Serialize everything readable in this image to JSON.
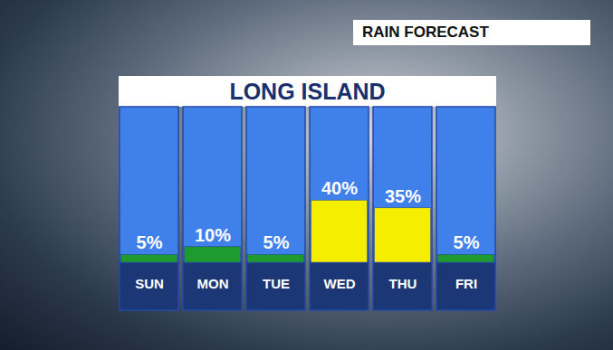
{
  "chart_data": {
    "type": "bar",
    "title": "LONG ISLAND",
    "subtitle": "RAIN FORECAST",
    "categories": [
      "SUN",
      "MON",
      "TUE",
      "WED",
      "THU",
      "FRI"
    ],
    "values": [
      5,
      10,
      5,
      40,
      35,
      5
    ],
    "value_labels": [
      "5%",
      "10%",
      "5%",
      "40%",
      "35%",
      "5%"
    ],
    "data_labels": true,
    "colors": [
      "#1f9a2e",
      "#1f9a2e",
      "#1f9a2e",
      "#f5ee00",
      "#f5ee00",
      "#1f9a2e"
    ],
    "ylim": [
      0,
      100
    ],
    "tick_labels": "x",
    "grid": false
  }
}
